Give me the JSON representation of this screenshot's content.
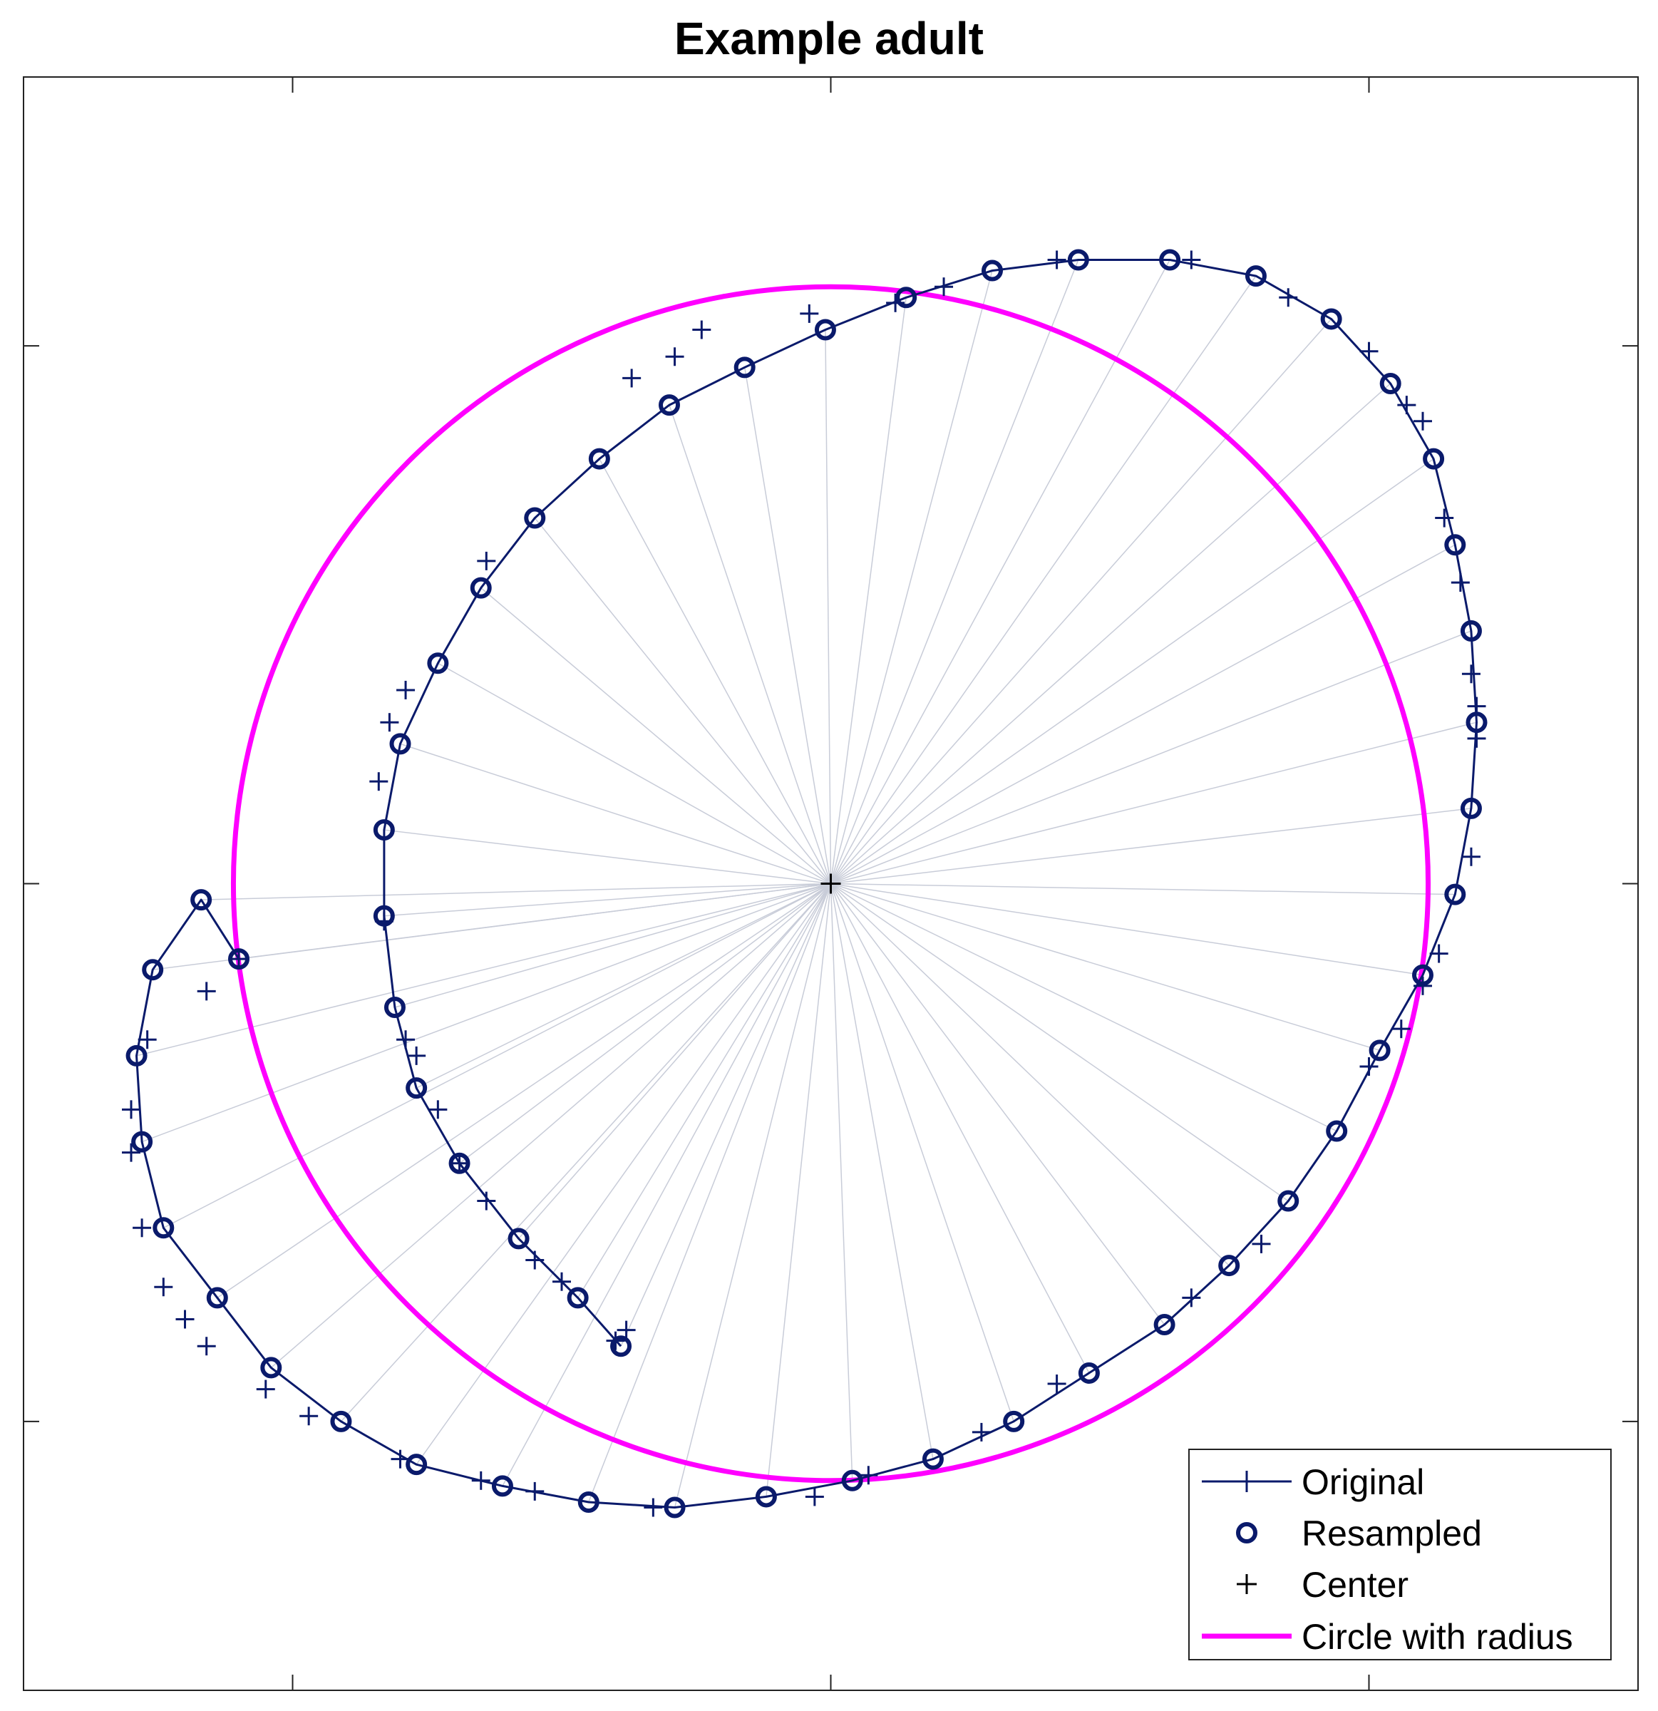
{
  "chart_data": {
    "type": "line",
    "title": "Example adult",
    "xlabel": "",
    "ylabel": "",
    "xlim": [
      -1.5,
      1.5
    ],
    "ylim": [
      -1.5,
      1.5
    ],
    "tick_labels_shown": false,
    "grid": false,
    "legend_position": "bottom-right",
    "colors": {
      "curve": "#0a1a6b",
      "circle": "#ff00ff",
      "rays": "#c8ccd8",
      "center": "#000000"
    },
    "legend": [
      "Original",
      "Resampled",
      "Center",
      "Circle with radius"
    ],
    "center": [
      0,
      0
    ],
    "radius": 1.11,
    "series": [
      {
        "name": "Original",
        "marker": "+",
        "points": [
          [
            -0.4,
            -0.85
          ],
          [
            -0.38,
            -0.83
          ],
          [
            -0.5,
            -0.74
          ],
          [
            -0.55,
            -0.7
          ],
          [
            -0.64,
            -0.59
          ],
          [
            -0.69,
            -0.52
          ],
          [
            -0.73,
            -0.42
          ],
          [
            -0.77,
            -0.32
          ],
          [
            -0.79,
            -0.29
          ],
          [
            -0.83,
            -0.07
          ],
          [
            -0.84,
            0.19
          ],
          [
            -0.82,
            0.3
          ],
          [
            -0.79,
            0.36
          ],
          [
            -0.64,
            0.6
          ],
          [
            -0.37,
            0.94
          ],
          [
            -0.29,
            0.98
          ],
          [
            -0.24,
            1.03
          ],
          [
            -0.04,
            1.06
          ],
          [
            0.12,
            1.08
          ],
          [
            0.21,
            1.11
          ],
          [
            0.42,
            1.16
          ],
          [
            0.67,
            1.16
          ],
          [
            0.85,
            1.09
          ],
          [
            1.0,
            0.99
          ],
          [
            1.07,
            0.89
          ],
          [
            1.1,
            0.86
          ],
          [
            1.14,
            0.68
          ],
          [
            1.17,
            0.56
          ],
          [
            1.19,
            0.39
          ],
          [
            1.2,
            0.33
          ],
          [
            1.2,
            0.27
          ],
          [
            1.19,
            0.05
          ],
          [
            1.13,
            -0.13
          ],
          [
            1.1,
            -0.19
          ],
          [
            1.06,
            -0.27
          ],
          [
            1.0,
            -0.34
          ],
          [
            0.8,
            -0.67
          ],
          [
            0.67,
            -0.77
          ],
          [
            0.42,
            -0.93
          ],
          [
            0.28,
            -1.02
          ],
          [
            0.07,
            -1.1
          ],
          [
            -0.03,
            -1.14
          ],
          [
            -0.33,
            -1.16
          ],
          [
            -0.55,
            -1.13
          ],
          [
            -0.65,
            -1.11
          ],
          [
            -0.8,
            -1.07
          ],
          [
            -0.97,
            -0.99
          ],
          [
            -1.05,
            -0.94
          ],
          [
            -1.16,
            -0.86
          ],
          [
            -1.2,
            -0.81
          ],
          [
            -1.24,
            -0.75
          ],
          [
            -1.28,
            -0.64
          ],
          [
            -1.3,
            -0.5
          ],
          [
            -1.3,
            -0.42
          ],
          [
            -1.27,
            -0.29
          ],
          [
            -1.16,
            -0.2
          ],
          [
            -1.1,
            -0.14
          ]
        ]
      },
      {
        "name": "Resampled",
        "marker": "o",
        "points": [
          [
            -0.39,
            -0.86
          ],
          [
            -0.47,
            -0.77
          ],
          [
            -0.58,
            -0.66
          ],
          [
            -0.69,
            -0.52
          ],
          [
            -0.77,
            -0.38
          ],
          [
            -0.81,
            -0.23
          ],
          [
            -0.83,
            -0.06
          ],
          [
            -0.83,
            0.1
          ],
          [
            -0.8,
            0.26
          ],
          [
            -0.73,
            0.41
          ],
          [
            -0.65,
            0.55
          ],
          [
            -0.55,
            0.68
          ],
          [
            -0.43,
            0.79
          ],
          [
            -0.3,
            0.89
          ],
          [
            -0.16,
            0.96
          ],
          [
            -0.01,
            1.03
          ],
          [
            0.14,
            1.09
          ],
          [
            0.3,
            1.14
          ],
          [
            0.46,
            1.16
          ],
          [
            0.63,
            1.16
          ],
          [
            0.79,
            1.13
          ],
          [
            0.93,
            1.05
          ],
          [
            1.04,
            0.93
          ],
          [
            1.12,
            0.79
          ],
          [
            1.16,
            0.63
          ],
          [
            1.19,
            0.47
          ],
          [
            1.2,
            0.3
          ],
          [
            1.19,
            0.14
          ],
          [
            1.16,
            -0.02
          ],
          [
            1.1,
            -0.17
          ],
          [
            1.02,
            -0.31
          ],
          [
            0.94,
            -0.46
          ],
          [
            0.85,
            -0.59
          ],
          [
            0.74,
            -0.71
          ],
          [
            0.62,
            -0.82
          ],
          [
            0.48,
            -0.91
          ],
          [
            0.34,
            -1.0
          ],
          [
            0.19,
            -1.07
          ],
          [
            0.04,
            -1.11
          ],
          [
            -0.12,
            -1.14
          ],
          [
            -0.29,
            -1.16
          ],
          [
            -0.45,
            -1.15
          ],
          [
            -0.61,
            -1.12
          ],
          [
            -0.77,
            -1.08
          ],
          [
            -0.91,
            -1.0
          ],
          [
            -1.04,
            -0.9
          ],
          [
            -1.14,
            -0.77
          ],
          [
            -1.24,
            -0.64
          ],
          [
            -1.28,
            -0.48
          ],
          [
            -1.29,
            -0.32
          ],
          [
            -1.26,
            -0.16
          ],
          [
            -1.17,
            -0.03
          ],
          [
            -1.1,
            -0.14
          ]
        ]
      },
      {
        "name": "Center",
        "marker": "+",
        "points": [
          [
            0,
            0
          ]
        ]
      },
      {
        "name": "Circle with radius",
        "marker": "none",
        "radius": 1.11
      }
    ]
  }
}
